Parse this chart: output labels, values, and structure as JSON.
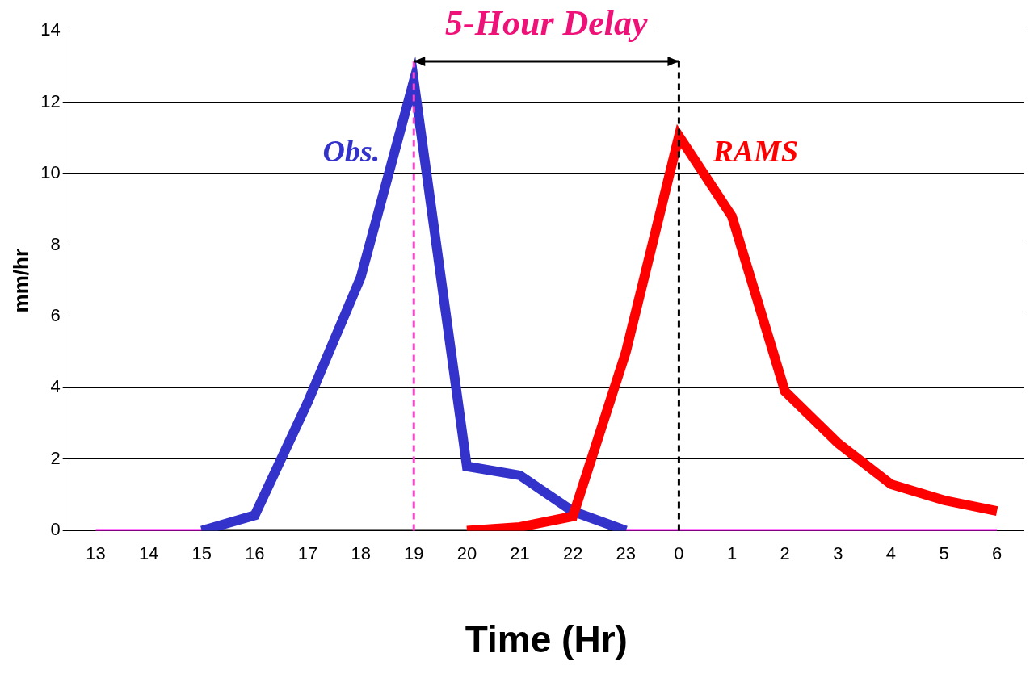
{
  "chart_data": {
    "type": "line",
    "xlabel": "Time (Hr)",
    "ylabel": "mm/hr",
    "categories": [
      "13",
      "14",
      "15",
      "16",
      "17",
      "18",
      "19",
      "20",
      "21",
      "22",
      "23",
      "0",
      "1",
      "2",
      "3",
      "4",
      "5",
      "6"
    ],
    "series": [
      {
        "color": "#ff00ff",
        "values": [
          0,
          0,
          0,
          null,
          null,
          null,
          null,
          null,
          null,
          null,
          0,
          0,
          0,
          0,
          0,
          0,
          0,
          0
        ]
      },
      {
        "color": "#000000",
        "values": [
          null,
          null,
          0,
          0,
          0,
          0,
          0,
          0,
          null,
          null,
          null,
          null,
          null,
          null,
          null,
          null,
          null,
          null
        ]
      },
      {
        "name": "Obs.",
        "color": "#3333cc",
        "values": [
          null,
          null,
          0,
          0.43,
          3.6,
          7.1,
          12.6,
          1.8,
          1.55,
          0.54,
          0,
          null,
          null,
          null,
          null,
          null,
          null,
          null
        ]
      },
      {
        "name": "RAMS",
        "color": "#ff0000",
        "values": [
          null,
          null,
          null,
          null,
          null,
          null,
          null,
          0,
          0.1,
          0.4,
          5.0,
          11.05,
          8.8,
          3.9,
          2.45,
          1.3,
          0.85,
          0.55
        ]
      }
    ],
    "ylim": [
      0,
      14
    ],
    "yticks": [
      0,
      2,
      4,
      6,
      8,
      10,
      12,
      14
    ],
    "grid": "y",
    "legend": false,
    "marker": "none",
    "line_style": "solid",
    "ref_lines": [
      {
        "axis": "x",
        "value": "19",
        "color": "#ff44cc",
        "line_style": "dashed"
      },
      {
        "axis": "x",
        "value": "0",
        "color": "#000000",
        "line_style": "dashed"
      }
    ],
    "annotations": [
      "5-Hour Delay"
    ]
  }
}
